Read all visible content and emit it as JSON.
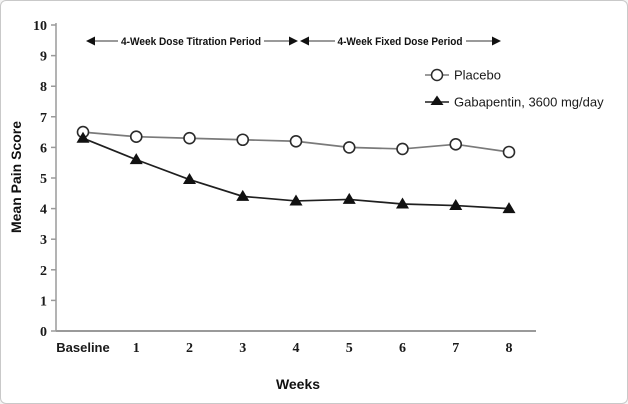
{
  "figure": {
    "background_color": "#ffffff",
    "border_color": "#c9c9c9",
    "axis_color": "#9a9a9a",
    "text_color": "#1a1a1a"
  },
  "chart_data": {
    "type": "line",
    "title": "",
    "xlabel": "Weeks",
    "ylabel": "Mean Pain Score",
    "categories": [
      "Baseline",
      "1",
      "2",
      "3",
      "4",
      "5",
      "6",
      "7",
      "8"
    ],
    "y_ticks": [
      0,
      1,
      2,
      3,
      4,
      5,
      6,
      7,
      8,
      9,
      10
    ],
    "ylim": [
      0,
      10
    ],
    "grid": false,
    "legend_position": "upper-right",
    "series": [
      {
        "name": "Placebo",
        "marker": "open-circle",
        "line_color": "#7a7a7a",
        "marker_color": "#2b2b2b",
        "values": [
          6.5,
          6.35,
          6.3,
          6.25,
          6.2,
          6.0,
          5.95,
          6.1,
          5.85
        ]
      },
      {
        "name": "Gabapentin, 3600 mg/day",
        "marker": "filled-triangle",
        "line_color": "#1f1f1f",
        "marker_color": "#111111",
        "values": [
          6.3,
          5.6,
          4.95,
          4.4,
          4.25,
          4.3,
          4.15,
          4.1,
          4.0
        ]
      }
    ],
    "period_annotations": [
      {
        "label": "4-Week Dose Titration Period",
        "x_start": "Baseline",
        "x_end": "4"
      },
      {
        "label": "4-Week Fixed Dose Period",
        "x_start": "4",
        "x_end": "8"
      }
    ]
  }
}
